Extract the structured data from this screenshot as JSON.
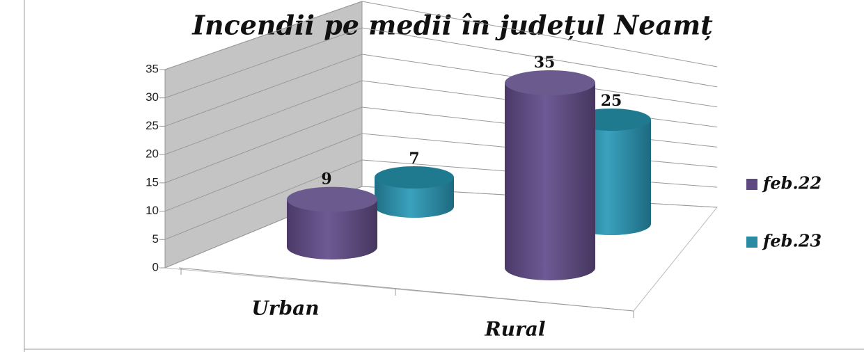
{
  "chart_data": {
    "type": "bar3d",
    "title": "Incendii pe medii  în județul Neamț",
    "categories": [
      "Urban",
      "Rural"
    ],
    "series": [
      {
        "name": "feb.22",
        "color": "#5e4a80",
        "values": [
          9,
          35
        ]
      },
      {
        "name": "feb.23",
        "color": "#2b8ba3",
        "values": [
          7,
          25
        ]
      }
    ],
    "ylim": [
      0,
      35
    ],
    "yticks": [
      0,
      5,
      10,
      15,
      20,
      25,
      30,
      35
    ],
    "grid": true,
    "legend": "right"
  }
}
